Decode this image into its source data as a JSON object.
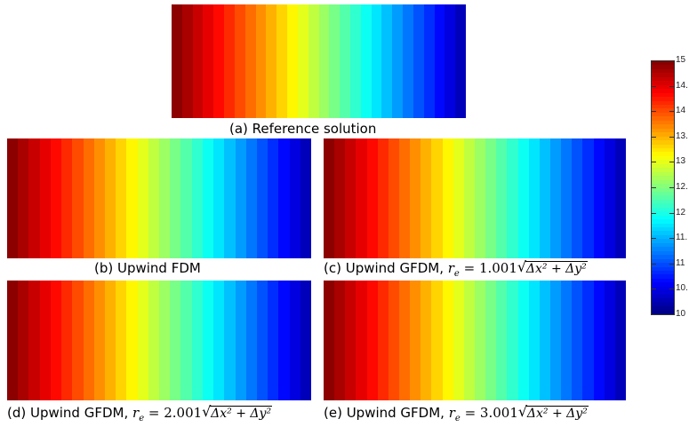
{
  "panels": [
    {
      "id": "a",
      "caption_plain": "(a) Reference solution"
    },
    {
      "id": "b",
      "caption_plain": "(b) Upwind FDM"
    },
    {
      "id": "c",
      "caption_prefix": "(c) Upwind GFDM, ",
      "re_label": "r",
      "re_sub": "e",
      "equals": " = ",
      "coef": "1.001",
      "radicand": "Δx² + Δy²"
    },
    {
      "id": "d",
      "caption_prefix": "(d) Upwind GFDM, ",
      "re_label": "r",
      "re_sub": "e",
      "equals": " = ",
      "coef": "2.001",
      "radicand": "Δx² + Δy²"
    },
    {
      "id": "e",
      "caption_prefix": "(e) Upwind GFDM, ",
      "re_label": "r",
      "re_sub": "e",
      "equals": " = ",
      "coef": "3.001",
      "radicand": "Δx² + Δy²"
    }
  ],
  "colorbar": {
    "colormap": "jet",
    "range": [
      10,
      15
    ],
    "ticks": [
      "15",
      "14.",
      "14",
      "13.",
      "13",
      "12.",
      "12",
      "11.",
      "11",
      "10.",
      "10"
    ]
  },
  "colors": {
    "jet_stops": [
      "#00008f",
      "#0000ff",
      "#00ffff",
      "#ffff00",
      "#ff0000",
      "#800000"
    ]
  }
}
